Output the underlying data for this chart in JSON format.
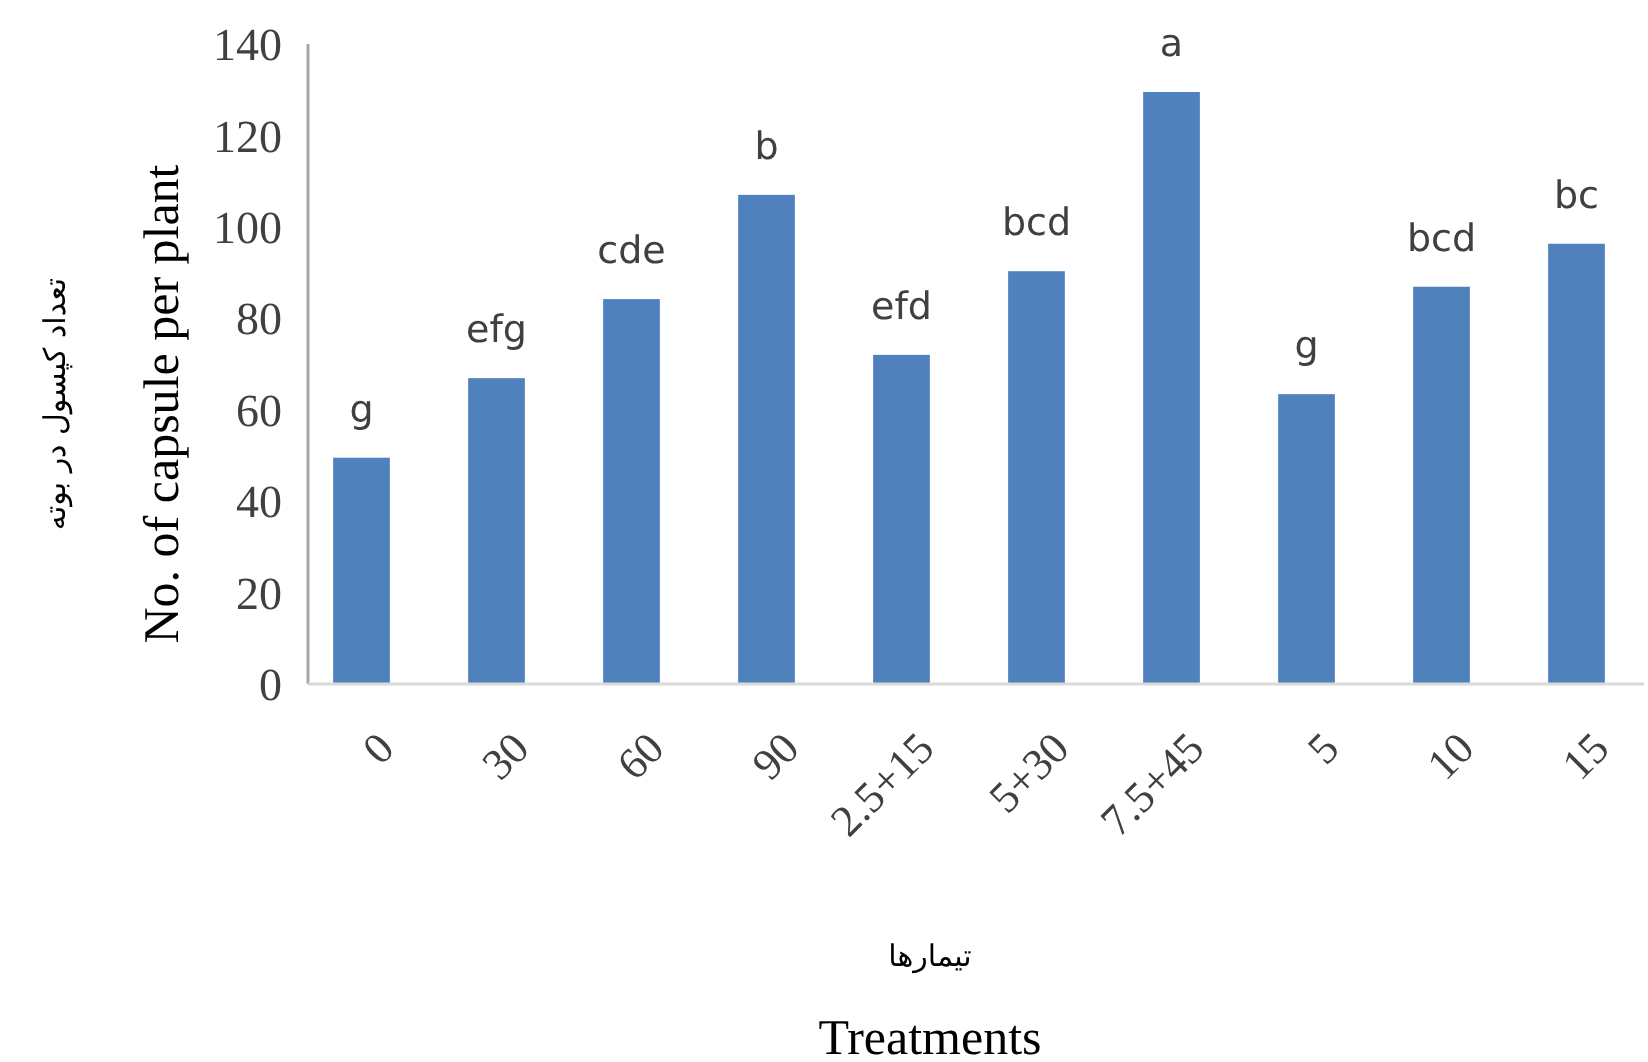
{
  "chart_data": {
    "type": "bar",
    "categories": [
      "0",
      "30",
      "60",
      "90",
      "2.5+15",
      "5+30",
      "7.5+45",
      "5",
      "10",
      "15"
    ],
    "values": [
      49.5,
      66.9,
      84.2,
      107,
      72,
      90.3,
      129.5,
      63.4,
      86.9,
      96.3
    ],
    "color": "#4f81bd",
    "ylim": [
      0,
      140
    ],
    "yticks": [
      0,
      20,
      40,
      60,
      80,
      100,
      120,
      140
    ],
    "grid": false,
    "ylabel": "تعداد کپسول در بوته\nNo. of capsule per plant",
    "xlabel": "تیمارها\nTreatments",
    "annotations": [
      {
        "text": "g",
        "x": "0",
        "y": 49.5
      },
      {
        "text": "efg",
        "x": "30",
        "y": 66.9
      },
      {
        "text": "cde",
        "x": "60",
        "y": 84.2
      },
      {
        "text": "b",
        "x": "90",
        "y": 107
      },
      {
        "text": "efd",
        "x": "2.5+15",
        "y": 72
      },
      {
        "text": "bcd",
        "x": "5+30",
        "y": 90.3
      },
      {
        "text": "a",
        "x": "7.5+45",
        "y": 129.5
      },
      {
        "text": "g",
        "x": "5",
        "y": 63.4
      },
      {
        "text": "bcd",
        "x": "10",
        "y": 86.9
      },
      {
        "text": "bc",
        "x": "15",
        "y": 96.3
      }
    ]
  }
}
